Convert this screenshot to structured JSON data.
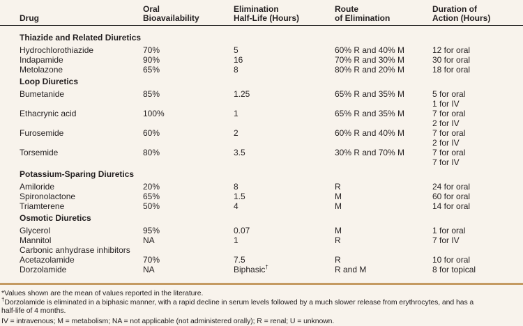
{
  "page": {
    "background": "#f8f3ec",
    "text_color": "#231f20",
    "header_rule_color": "#1c1c1c",
    "footnote_rule_color": "#c49a62"
  },
  "table": {
    "columns": [
      {
        "lines": [
          "Drug"
        ]
      },
      {
        "lines": [
          "Oral",
          "Bioavailability"
        ]
      },
      {
        "lines": [
          "Elimination",
          "Half-Life (Hours)"
        ]
      },
      {
        "lines": [
          "Route",
          "of Elimination"
        ]
      },
      {
        "lines": [
          "Duration of",
          "Action (Hours)"
        ]
      }
    ],
    "sections": [
      {
        "title": "Thiazide and Related Diuretics",
        "rows": [
          {
            "drug": "Hydrochlorothiazide",
            "bioavailability": "70%",
            "half_life": "5",
            "route": "60% R and 40% M",
            "duration": [
              "12 for oral"
            ]
          },
          {
            "drug": "Indapamide",
            "bioavailability": "90%",
            "half_life": "16",
            "route": "70% R and 30% M",
            "duration": [
              "30 for oral"
            ]
          },
          {
            "drug": "Metolazone",
            "bioavailability": "65%",
            "half_life": "8",
            "route": "80% R and 20% M",
            "duration": [
              "18 for oral"
            ]
          }
        ]
      },
      {
        "title": "Loop Diuretics",
        "rows": [
          {
            "drug": "Bumetanide",
            "bioavailability": "85%",
            "half_life": "1.25",
            "route": "65% R and 35% M",
            "duration": [
              "5 for oral",
              "1 for IV"
            ]
          },
          {
            "drug": "Ethacrynic acid",
            "bioavailability": "100%",
            "half_life": "1",
            "route": "65% R and 35% M",
            "duration": [
              "7 for oral",
              "2 for IV"
            ]
          },
          {
            "drug": "Furosemide",
            "bioavailability": "60%",
            "half_life": "2",
            "route": "60% R and 40% M",
            "duration": [
              "7 for oral",
              "2 for IV"
            ]
          },
          {
            "drug": "Torsemide",
            "bioavailability": "80%",
            "half_life": "3.5",
            "route": "30% R and 70% M",
            "duration": [
              "7 for oral",
              "7 for IV"
            ]
          }
        ]
      },
      {
        "title": "Potassium-Sparing Diuretics",
        "rows": [
          {
            "drug": "Amiloride",
            "bioavailability": "20%",
            "half_life": "8",
            "route": "R",
            "duration": [
              "24 for oral"
            ]
          },
          {
            "drug": "Spironolactone",
            "bioavailability": "65%",
            "half_life": "1.5",
            "route": "M",
            "duration": [
              "60 for oral"
            ]
          },
          {
            "drug": "Triamterene",
            "bioavailability": "50%",
            "half_life": "4",
            "route": "M",
            "duration": [
              "14 for oral"
            ]
          }
        ]
      },
      {
        "title": "Osmotic Diuretics",
        "rows": [
          {
            "drug": "Glycerol",
            "bioavailability": "95%",
            "half_life": "0.07",
            "route": "M",
            "duration": [
              "1 for oral"
            ]
          },
          {
            "drug": "Mannitol",
            "bioavailability": "NA",
            "half_life": "1",
            "route": "R",
            "duration": [
              "7 for IV"
            ]
          },
          {
            "drug": "Carbonic anhydrase inhibitors",
            "bioavailability": "",
            "half_life": "",
            "route": "",
            "duration": []
          },
          {
            "drug": "Acetazolamide",
            "bioavailability": "70%",
            "half_life": "7.5",
            "route": "R",
            "duration": [
              "10 for oral"
            ]
          },
          {
            "drug": "Dorzolamide",
            "bioavailability": "NA",
            "half_life": "Biphasic†",
            "route": "R and M",
            "duration": [
              "8 for topical"
            ]
          }
        ]
      }
    ]
  },
  "footnotes": [
    {
      "lines": [
        "*Values shown are the mean of values reported in the literature."
      ]
    },
    {
      "lines": [
        "†Dorzolamide is eliminated in a biphasic manner, with a rapid decline in serum levels followed by a much slower release from erythrocytes, and has a",
        "half-life of 4 months."
      ]
    },
    {
      "lines": [
        "IV = intravenous; M = metabolism; NA = not applicable (not administered orally); R = renal; U = unknown."
      ]
    }
  ]
}
